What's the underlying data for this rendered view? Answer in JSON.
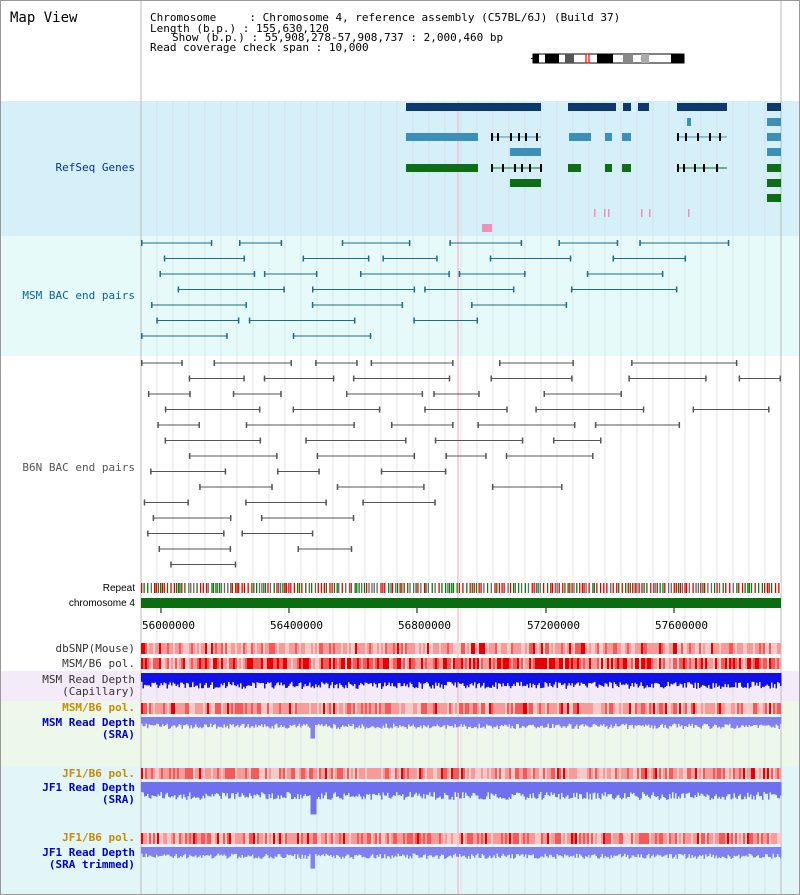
{
  "header": {
    "title": "Map View",
    "chromosome_label": "Chromosome    ",
    "chromosome_value": "Chromosome 4, reference assembly (C57BL/6J) (Build 37)",
    "length_label": "Length (b.p.)",
    "length_value": "155,630,120",
    "show_label": "Show (b.p.)",
    "show_value": "55,908,278-57,908,737 : 2,000,460 bp",
    "coverage_label": "Read coverage check span",
    "coverage_value": "10,000"
  },
  "tracks": {
    "refseq": {
      "label": "RefSeq Genes",
      "color": "#003399"
    },
    "msm_bac": {
      "label": "MSM BAC end pairs",
      "color": "#006699"
    },
    "b6n_bac": {
      "label": "B6N BAC end pairs",
      "color": "#555555"
    },
    "repeat": {
      "label": "Repeat"
    },
    "chromosome": {
      "label": "chromosome 4"
    },
    "dbsnp": {
      "label": "dbSNP(Mouse)"
    },
    "msm_b6_pol": {
      "label": "MSM/B6 pol."
    },
    "msm_depth_cap": {
      "label1": "MSM Read Depth",
      "label2": "(Capillary)"
    },
    "msm_b6_pol2": {
      "label": "MSM/B6 pol.",
      "color": "#cc8800"
    },
    "msm_depth_sra": {
      "label1": "MSM Read Depth",
      "label2": "(SRA)",
      "color": "#0000cc"
    },
    "jf1_b6_pol": {
      "label": "JF1/B6 pol.",
      "color": "#cc8800"
    },
    "jf1_depth_sra": {
      "label1": "JF1 Read Depth",
      "label2": "(SRA)",
      "color": "#0000cc"
    },
    "jf1_b6_pol2": {
      "label": "JF1/B6 pol.",
      "color": "#cc8800"
    },
    "jf1_depth_trim": {
      "label1": "JF1 Read Depth",
      "label2": "(SRA trimmed)",
      "color": "#0000cc"
    }
  },
  "axis": {
    "ticks": [
      "56000000",
      "56400000",
      "56800000",
      "57200000",
      "57600000"
    ]
  }
}
